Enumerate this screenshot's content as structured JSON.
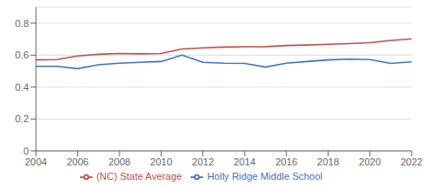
{
  "chart_data": {
    "type": "line",
    "x": [
      2004,
      2005,
      2006,
      2007,
      2008,
      2009,
      2010,
      2011,
      2012,
      2013,
      2014,
      2015,
      2016,
      2017,
      2018,
      2019,
      2020,
      2021,
      2022
    ],
    "series": [
      {
        "name": "Holly Ridge Middle School",
        "color": "#4472C4",
        "values": [
          0.53,
          0.53,
          0.515,
          0.54,
          0.55,
          0.555,
          0.56,
          0.6,
          0.555,
          0.55,
          0.548,
          0.525,
          0.55,
          0.56,
          0.57,
          0.575,
          0.572,
          0.548,
          0.558
        ]
      },
      {
        "name": "(NC) State Average",
        "color": "#C0504D",
        "values": [
          0.57,
          0.572,
          0.595,
          0.605,
          0.61,
          0.608,
          0.61,
          0.638,
          0.645,
          0.65,
          0.652,
          0.653,
          0.66,
          0.663,
          0.668,
          0.672,
          0.678,
          0.692,
          0.702
        ]
      }
    ],
    "xlim": [
      2004,
      2022
    ],
    "ylim": [
      0,
      0.9
    ],
    "xticks": [
      2004,
      2006,
      2008,
      2010,
      2012,
      2014,
      2016,
      2018,
      2020,
      2022
    ],
    "yticks": [
      0,
      0.2,
      0.4,
      0.6,
      0.8
    ],
    "grid": "y",
    "legend": "bottom"
  }
}
